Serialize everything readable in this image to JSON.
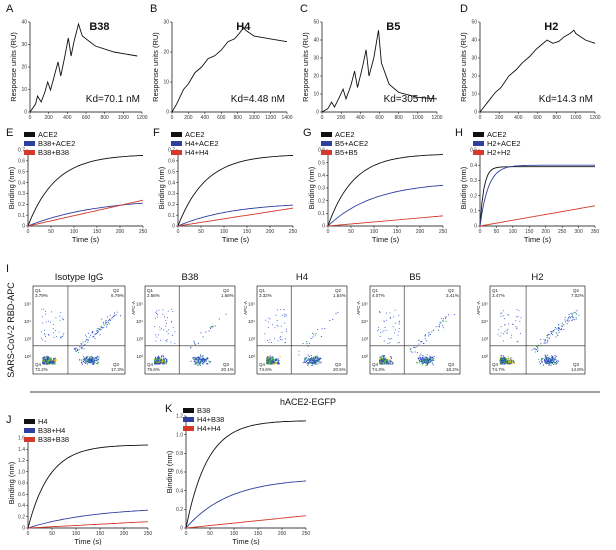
{
  "figure": {
    "flow_row_label": "SARS-CoV-2 RBD-APC",
    "flow_col_label": "hACE2-EGFP"
  },
  "colors": {
    "black": "#111111",
    "blue": "#2f3f9e",
    "red": "#d43a2a"
  },
  "spr_panels": [
    {
      "letter": "A",
      "title": "B38",
      "kd": "Kd=70.1 nM",
      "ylabel": "Response units (RU)",
      "xlabel": "",
      "xticks": [
        "0",
        "200",
        "400",
        "600",
        "800",
        "1000",
        "1200"
      ],
      "yticks": [
        "0",
        "10",
        "20",
        "30",
        "40"
      ],
      "xmax": 1200,
      "ymax": 45,
      "points": [
        [
          0,
          0
        ],
        [
          60,
          4
        ],
        [
          80,
          8
        ],
        [
          120,
          5
        ],
        [
          160,
          10
        ],
        [
          190,
          15
        ],
        [
          220,
          11
        ],
        [
          260,
          18
        ],
        [
          300,
          25
        ],
        [
          330,
          18
        ],
        [
          370,
          27
        ],
        [
          410,
          37
        ],
        [
          440,
          28
        ],
        [
          470,
          35
        ],
        [
          520,
          44
        ],
        [
          560,
          38
        ],
        [
          700,
          33
        ],
        [
          900,
          30
        ],
        [
          1150,
          28
        ]
      ]
    },
    {
      "letter": "B",
      "title": "H4",
      "kd": "Kd=4.48 nM",
      "ylabel": "Response units (RU)",
      "xlabel": "",
      "xticks": [
        "0",
        "200",
        "400",
        "600",
        "800",
        "1000",
        "1200",
        "1400"
      ],
      "yticks": [
        "0",
        "10",
        "20",
        "30"
      ],
      "xmax": 1400,
      "ymax": 32,
      "points": [
        [
          0,
          0
        ],
        [
          60,
          3
        ],
        [
          140,
          8
        ],
        [
          200,
          10
        ],
        [
          280,
          14
        ],
        [
          360,
          16
        ],
        [
          440,
          19
        ],
        [
          520,
          20
        ],
        [
          600,
          22
        ],
        [
          680,
          25
        ],
        [
          760,
          26
        ],
        [
          820,
          28
        ],
        [
          870,
          30
        ],
        [
          900,
          29
        ],
        [
          1000,
          27
        ],
        [
          1200,
          26
        ],
        [
          1400,
          25
        ]
      ]
    },
    {
      "letter": "C",
      "title": "B5",
      "kd": "Kd=305 nM",
      "ylabel": "Response units (RU)",
      "xlabel": "",
      "xticks": [
        "0",
        "200",
        "400",
        "600",
        "800",
        "1000",
        "1200"
      ],
      "yticks": [
        "0",
        "10",
        "20",
        "30",
        "40",
        "50"
      ],
      "xmax": 1200,
      "ymax": 55,
      "points": [
        [
          0,
          0
        ],
        [
          60,
          2
        ],
        [
          100,
          6
        ],
        [
          130,
          3
        ],
        [
          180,
          9
        ],
        [
          220,
          14
        ],
        [
          250,
          8
        ],
        [
          300,
          16
        ],
        [
          340,
          25
        ],
        [
          370,
          15
        ],
        [
          420,
          27
        ],
        [
          460,
          38
        ],
        [
          490,
          22
        ],
        [
          540,
          33
        ],
        [
          590,
          50
        ],
        [
          620,
          30
        ],
        [
          700,
          17
        ],
        [
          800,
          12
        ],
        [
          1000,
          9
        ],
        [
          1200,
          8
        ]
      ]
    },
    {
      "letter": "D",
      "title": "H2",
      "kd": "Kd=14.3 nM",
      "ylabel": "Response units (RU)",
      "xlabel": "",
      "xticks": [
        "0",
        "200",
        "400",
        "600",
        "800",
        "1000",
        "1200"
      ],
      "yticks": [
        "0",
        "10",
        "20",
        "30",
        "40",
        "50"
      ],
      "xmax": 1200,
      "ymax": 55,
      "points": [
        [
          0,
          0
        ],
        [
          80,
          6
        ],
        [
          160,
          12
        ],
        [
          220,
          15
        ],
        [
          300,
          22
        ],
        [
          380,
          26
        ],
        [
          440,
          30
        ],
        [
          520,
          34
        ],
        [
          580,
          38
        ],
        [
          640,
          41
        ],
        [
          700,
          44
        ],
        [
          760,
          42
        ],
        [
          820,
          43
        ],
        [
          880,
          46
        ],
        [
          940,
          48
        ],
        [
          980,
          50
        ],
        [
          1000,
          48
        ],
        [
          1100,
          44
        ],
        [
          1200,
          42
        ]
      ]
    }
  ],
  "bli_panels": [
    {
      "letter": "E",
      "ylabel": "Binding  (nm)",
      "xlabel": "Time (s)",
      "xticks": [
        "0",
        "50",
        "100",
        "150",
        "200",
        "250"
      ],
      "yticks": [
        "0",
        "0.1",
        "0.2",
        "0.3",
        "0.4",
        "0.5",
        "0.6",
        "0.7"
      ],
      "xmax": 250,
      "ymax": 0.7,
      "series": [
        {
          "name": "ACE2",
          "color": "black",
          "amp": 0.66,
          "tau": 60,
          "lin": 0
        },
        {
          "name": "B38+ACE2",
          "color": "blue",
          "amp": 0.26,
          "tau": 150,
          "lin": 0
        },
        {
          "name": "B38+B38",
          "color": "red",
          "amp": 0.0,
          "tau": 1,
          "lin": 0.00095
        }
      ]
    },
    {
      "letter": "F",
      "ylabel": "Binding  (nm)",
      "xlabel": "Time (s)",
      "xticks": [
        "0",
        "50",
        "100",
        "150",
        "200",
        "250"
      ],
      "yticks": [
        "0",
        "0.1",
        "0.2",
        "0.3",
        "0.4",
        "0.5",
        "0.6",
        "0.7"
      ],
      "xmax": 250,
      "ymax": 0.7,
      "series": [
        {
          "name": "ACE2",
          "color": "black",
          "amp": 0.66,
          "tau": 60,
          "lin": 0
        },
        {
          "name": "H4+ACE2",
          "color": "blue",
          "amp": 0.22,
          "tau": 120,
          "lin": 0
        },
        {
          "name": "H4+H4",
          "color": "red",
          "amp": 0.0,
          "tau": 1,
          "lin": 0.00066
        }
      ]
    },
    {
      "letter": "G",
      "ylabel": "Binding  (nm)",
      "xlabel": "Time (s)",
      "xticks": [
        "0",
        "50",
        "100",
        "150",
        "200",
        "250"
      ],
      "yticks": [
        "0",
        "0.1",
        "0.2",
        "0.3",
        "0.4",
        "0.5",
        "0.6"
      ],
      "xmax": 250,
      "ymax": 0.6,
      "series": [
        {
          "name": "ACE2",
          "color": "black",
          "amp": 0.57,
          "tau": 55,
          "lin": 0
        },
        {
          "name": "B5+ACE2",
          "color": "blue",
          "amp": 0.35,
          "tau": 100,
          "lin": 0
        },
        {
          "name": "B5+B5",
          "color": "red",
          "amp": 0.0,
          "tau": 1,
          "lin": 0.00032
        }
      ]
    },
    {
      "letter": "H",
      "ylabel": "Binding  (nm)",
      "xlabel": "Time (s)",
      "xticks": [
        "0",
        "50",
        "100",
        "150",
        "200",
        "250",
        "300",
        "350"
      ],
      "yticks": [
        "0",
        "0.1",
        "0.2",
        "0.3",
        "0.4",
        "0.5"
      ],
      "xmax": 350,
      "ymax": 0.5,
      "series": [
        {
          "name": "ACE2",
          "color": "black",
          "amp": 0.39,
          "tau": 12,
          "lin": 0
        },
        {
          "name": "H2+ACE2",
          "color": "blue",
          "amp": 0.4,
          "tau": 25,
          "lin": 0
        },
        {
          "name": "H2+H2",
          "color": "red",
          "amp": 0.0,
          "tau": 1,
          "lin": 0.00038
        }
      ]
    }
  ],
  "flow_panel_letter": "I",
  "flow_panels": [
    {
      "title": "Isotype IgG",
      "q1": "Q1\n3.79%",
      "q2": "Q2\n6.79%",
      "q3": "Q3\n17.3%",
      "q4": "Q4\n72.2%",
      "q1v": "3.79%",
      "q2v": "6.79%",
      "q3v": "17.3%",
      "q4v": "72.2%",
      "q2_density": 0.7
    },
    {
      "title": "B38",
      "q1v": "2.56%",
      "q2v": "1.68%",
      "q3v": "20.1%",
      "q4v": "75.6%",
      "q2_density": 0.15
    },
    {
      "title": "H4",
      "q1v": "3.32%",
      "q2v": "1.54%",
      "q3v": "20.5%",
      "q4v": "74.6%",
      "q2_density": 0.15
    },
    {
      "title": "B5",
      "q1v": "4.07%",
      "q2v": "3.41%",
      "q3v": "18.2%",
      "q4v": "74.3%",
      "q2_density": 0.35
    },
    {
      "title": "H2",
      "q1v": "3.47%",
      "q2v": "7.02%",
      "q3v": "14.8%",
      "q4v": "74.7%",
      "q2_density": 0.7
    }
  ],
  "flow_axis_ticks": [
    "10²",
    "10³",
    "10⁴",
    "10⁵"
  ],
  "flow_ylabel_small": "APC-A",
  "bli_lower": [
    {
      "letter": "J",
      "ylabel": "Binding  (nm)",
      "xlabel": "Time  (s)",
      "xticks": [
        "0",
        "50",
        "100",
        "150",
        "200",
        "250"
      ],
      "yticks": [
        "0",
        "0.2",
        "0.4",
        "0.6",
        "0.8",
        "1.0",
        "1.2",
        "1.4",
        "1.6"
      ],
      "xmax": 250,
      "ymax": 1.6,
      "series": [
        {
          "name": "H4",
          "color": "black",
          "amp": 1.48,
          "tau": 45,
          "lin": 0
        },
        {
          "name": "B38+H4",
          "color": "blue",
          "amp": 0.38,
          "tau": 140,
          "lin": 0
        },
        {
          "name": "B38+B38",
          "color": "red",
          "amp": 0.0,
          "tau": 1,
          "lin": 0.00045
        }
      ]
    },
    {
      "letter": "K",
      "ylabel": "Binding  (nm)",
      "xlabel": "Time  (s)",
      "xticks": [
        "0",
        "50",
        "100",
        "150",
        "200",
        "250"
      ],
      "yticks": [
        "0",
        "0.2",
        "0.4",
        "0.6",
        "0.8",
        "1.0",
        "1.2"
      ],
      "xmax": 250,
      "ymax": 1.25,
      "series": [
        {
          "name": "B38",
          "color": "black",
          "amp": 1.2,
          "tau": 45,
          "lin": 0
        },
        {
          "name": "H4+B38",
          "color": "blue",
          "amp": 0.56,
          "tau": 90,
          "lin": 0
        },
        {
          "name": "H4+H4",
          "color": "red",
          "amp": 0.0,
          "tau": 1,
          "lin": 0.00055
        }
      ]
    }
  ]
}
